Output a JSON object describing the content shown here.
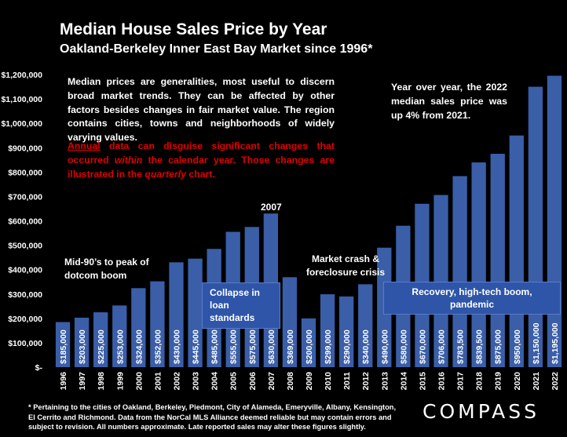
{
  "header": {
    "title": "Median House Sales Price by Year",
    "subtitle": "Oakland-Berkeley Inner East Bay Market since 1996*"
  },
  "notes": {
    "main": "Median prices are generalities, most useful to discern broad market trends. They can be affected by other factors besides changes in fair market value. The region contains cities, towns and neighborhoods of widely varying values.",
    "red_part1": "Annual",
    "red_part2": " data can disguise significant changes that occurred ",
    "red_part3": "within",
    "red_part4": " the calendar year. Those changes are illustrated in the ",
    "red_part5": "quarterly",
    "red_part6": " chart.",
    "yoy": "Year over year, the 2022 median sales price was up 4% from 2021."
  },
  "annotations": {
    "dotcom": "Mid-90’s to peak of dotcom boom",
    "peak": "2007",
    "crash": "Market crash & foreclosure crisis",
    "collapse": "Collapse in loan standards",
    "recovery": "Recovery, high-tech boom, pandemic"
  },
  "footnote": "* Pertaining to the cities of Oakland, Berkeley, Piedmont, City of Alameda, Emeryville, Albany, Kensington, El Cerrito and Richmond. Data from the NorCal MLS Alliance deemed reliable but may contain errors and subject to revision. All numbers approximate. Late reported sales may alter these figures slightly.",
  "logo": "COMPASS",
  "colors": {
    "bar": "#3a5ea8",
    "background": "#000000",
    "text": "#ffffff",
    "highlight": "#e00000"
  },
  "chart_data": {
    "type": "bar",
    "title": "Median House Sales Price by Year",
    "xlabel": "",
    "ylabel": "",
    "ylim": [
      0,
      1200000
    ],
    "yticks": [
      0,
      100000,
      200000,
      300000,
      400000,
      500000,
      600000,
      700000,
      800000,
      900000,
      1000000,
      1100000,
      1200000
    ],
    "ytick_labels": [
      "$-",
      "$100,000",
      "$200,000",
      "$300,000",
      "$400,000",
      "$500,000",
      "$600,000",
      "$700,000",
      "$800,000",
      "$900,000",
      "$1,000,000",
      "$1,100,000",
      "$1,200,000"
    ],
    "grid": false,
    "categories": [
      "1996",
      "1997",
      "1998",
      "1999",
      "2000",
      "2001",
      "2002",
      "2003",
      "2004",
      "2005",
      "2006",
      "2007",
      "2008",
      "2009",
      "2010",
      "2011",
      "2012",
      "2013",
      "2014",
      "2015",
      "2016",
      "2017",
      "2018",
      "2019",
      "2020",
      "2021",
      "2022"
    ],
    "values": [
      185000,
      203000,
      225000,
      253000,
      324000,
      352000,
      430000,
      445000,
      485000,
      555000,
      575000,
      630000,
      369000,
      200000,
      299000,
      290000,
      340000,
      490000,
      580000,
      670000,
      706000,
      783500,
      839500,
      875000,
      950000,
      1150000,
      1195000
    ],
    "value_labels": [
      "$185,000",
      "$203,000",
      "$225,000",
      "$253,000",
      "$324,000",
      "$352,000",
      "$430,000",
      "$445,000",
      "$485,000",
      "$555,000",
      "$575,000",
      "$630,000",
      "$369,000",
      "$200,000",
      "$299,000",
      "$290,000",
      "$340,000",
      "$490,000",
      "$580,000",
      "$670,000",
      "$706,000",
      "$783,500",
      "$839,500",
      "$875,000",
      "$950,000",
      "$1,150,000",
      "$1,195,000"
    ]
  }
}
